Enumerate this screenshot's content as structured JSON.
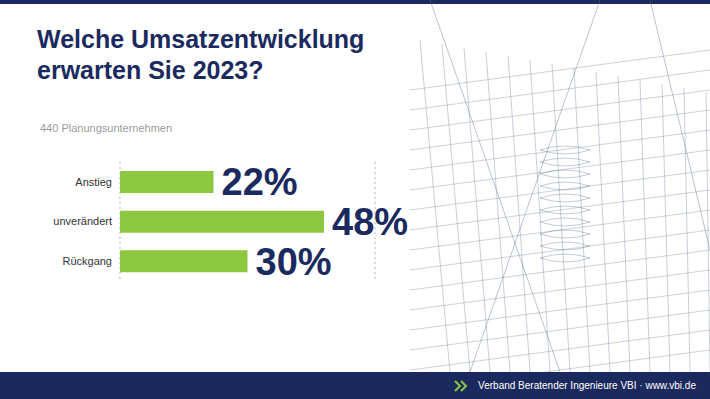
{
  "chart_data": {
    "type": "bar",
    "orientation": "horizontal",
    "title": "Welche Umsatzentwicklung erwarten Sie 2023?",
    "subtitle": "440 Planungsunternehmen",
    "categories": [
      "Anstieg",
      "unverändert",
      "Rückgang"
    ],
    "values": [
      22,
      48,
      30
    ],
    "value_labels": [
      "22%",
      "48%",
      "30%"
    ],
    "color": "#8dc63f",
    "data_labels": true,
    "tick_labels": "y",
    "grid": true,
    "xlim": [
      0,
      60
    ],
    "xticks": [
      0,
      20,
      40,
      60
    ],
    "footer": "Verband Beratender Ingenieure VBI · www.vbi.de"
  }
}
